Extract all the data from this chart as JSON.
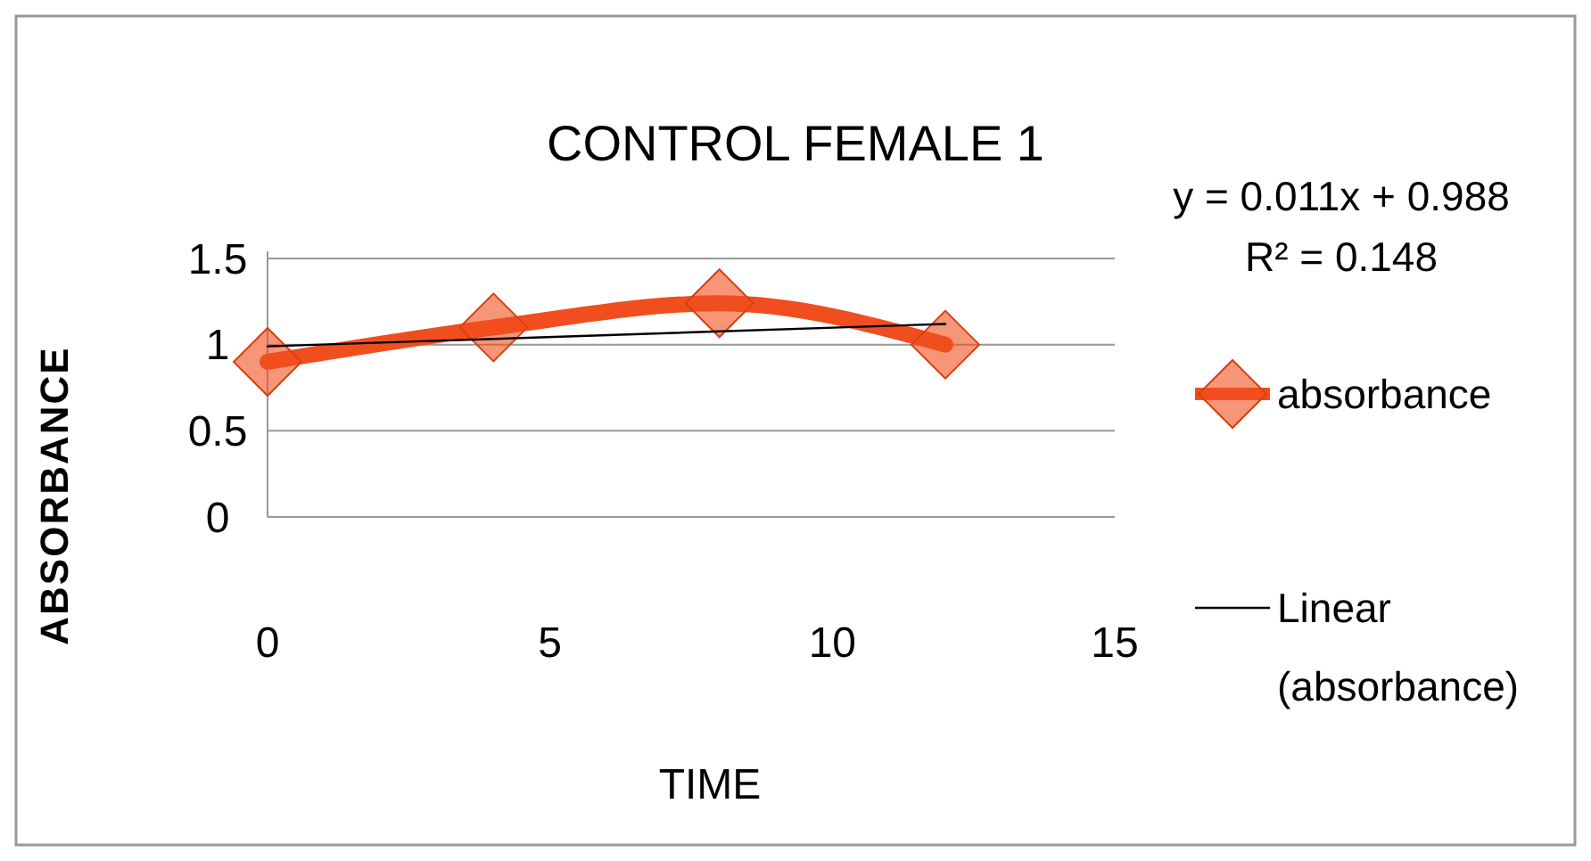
{
  "chart_data": {
    "type": "line",
    "title": "CONTROL FEMALE 1",
    "xlabel": "TIME",
    "ylabel": "ABSORBANCE",
    "xlim": [
      0,
      15
    ],
    "xticks": [
      0,
      5,
      10,
      15
    ],
    "ylim": [
      0,
      1.5
    ],
    "yticks": [
      0,
      0.5,
      1,
      1.5
    ],
    "grid": "y",
    "legend": "right",
    "annotations": [
      "y = 0.011x + 0.988",
      "R² = 0.148"
    ],
    "series": [
      {
        "name": "absorbance",
        "color": "#f04e1e",
        "x": [
          0,
          4,
          8,
          12
        ],
        "values": [
          0.9,
          1.1,
          1.24,
          1.0
        ],
        "marker": "diamond"
      },
      {
        "name": "Linear (absorbance)",
        "color": "#000000",
        "x": [
          0,
          12
        ],
        "values": [
          0.99,
          1.12
        ],
        "marker": "none"
      }
    ]
  }
}
